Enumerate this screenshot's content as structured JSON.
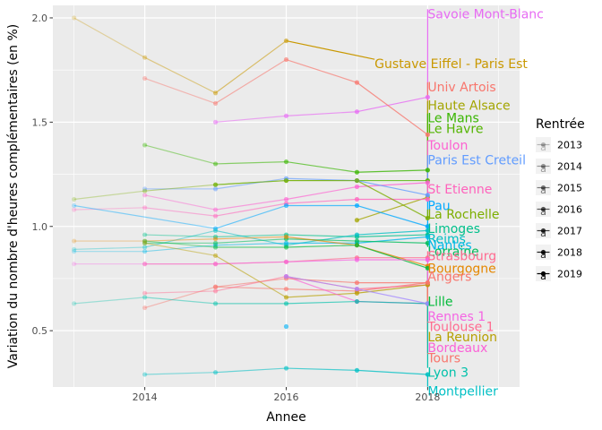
{
  "chart_data": {
    "type": "line",
    "xlabel": "Annee",
    "ylabel": "Variation du nombre d'heures complémentaires (en %)",
    "xlim": [
      2012.7,
      2019.3
    ],
    "ylim": [
      0.23,
      2.06
    ],
    "x_ticks": [
      2014,
      2016,
      2018
    ],
    "y_ticks": [
      0.5,
      1.0,
      1.5,
      2.0
    ],
    "x_tick_labels": [
      "2014",
      "2016",
      "2018"
    ],
    "y_tick_labels": [
      "0.5",
      "1.0",
      "1.5",
      "2.0"
    ],
    "minor_x": [
      2013,
      2015,
      2017,
      2019
    ],
    "minor_y": [
      0.75,
      1.25,
      1.75
    ],
    "grid": true,
    "legend": {
      "title": "Rentrée",
      "placement": "right",
      "entries": [
        "2013",
        "2014",
        "2015",
        "2016",
        "2017",
        "2018",
        "2019"
      ],
      "symbol": "a"
    },
    "series": [
      {
        "name": "Savoie Mont-Blanc",
        "color": "#e76bf3",
        "points": [
          [
            2015,
            1.5
          ],
          [
            2016,
            1.53
          ],
          [
            2017,
            1.55
          ],
          [
            2018,
            1.62
          ]
        ],
        "label": [
          2018.0,
          2.02
        ]
      },
      {
        "name": "Gustave Eiffel - Paris Est",
        "color": "#c99800",
        "points": [
          [
            2013,
            2.0
          ],
          [
            2014,
            1.81
          ],
          [
            2015,
            1.64
          ],
          [
            2016,
            1.89
          ]
        ],
        "label": [
          2017.25,
          1.78
        ]
      },
      {
        "name": "Univ Artois",
        "color": "#f8766d",
        "points": [
          [
            2014,
            1.71
          ],
          [
            2015,
            1.59
          ],
          [
            2016,
            1.8
          ],
          [
            2017,
            1.69
          ],
          [
            2018,
            1.44
          ]
        ],
        "label": [
          2018.0,
          1.67
        ]
      },
      {
        "name": "Haute Alsace",
        "color": "#a3a500",
        "points": [
          [
            2017,
            1.03
          ],
          [
            2018,
            1.14
          ]
        ],
        "label": [
          2018.0,
          1.58
        ]
      },
      {
        "name": "Le Mans",
        "color": "#39b600",
        "points": [
          [
            2014,
            1.39
          ],
          [
            2015,
            1.3
          ],
          [
            2016,
            1.31
          ],
          [
            2017,
            1.26
          ],
          [
            2018,
            1.27
          ]
        ],
        "label": [
          2018.0,
          1.52
        ]
      },
      {
        "name": "Le Havre",
        "color": "#53b400",
        "points": [
          [
            2015,
            1.2
          ],
          [
            2016,
            1.22
          ],
          [
            2017,
            1.22
          ],
          [
            2018,
            1.22
          ]
        ],
        "label": [
          2018.0,
          1.47
        ]
      },
      {
        "name": "Toulon",
        "color": "#fd61d1",
        "points": [
          [
            2014,
            1.15
          ],
          [
            2015,
            1.08
          ],
          [
            2016,
            1.13
          ],
          [
            2017,
            1.19
          ],
          [
            2018,
            1.21
          ]
        ],
        "label": [
          2018.0,
          1.39
        ]
      },
      {
        "name": "Paris Est Creteil",
        "color": "#619cff",
        "points": [
          [
            2014,
            1.18
          ],
          [
            2015,
            1.18
          ],
          [
            2016,
            1.23
          ],
          [
            2017,
            1.22
          ],
          [
            2018,
            1.15
          ]
        ],
        "label": [
          2018.0,
          1.32
        ]
      },
      {
        "name": "St Etienne",
        "color": "#ff62bc",
        "points": [
          [
            2013,
            1.08
          ],
          [
            2014,
            1.09
          ],
          [
            2015,
            1.05
          ],
          [
            2016,
            1.11
          ],
          [
            2017,
            1.13
          ],
          [
            2018,
            1.13
          ]
        ],
        "label": [
          2018.0,
          1.18
        ]
      },
      {
        "name": "Pau",
        "color": "#00a9ff",
        "points": [
          [
            2013,
            1.1
          ],
          [
            2015,
            0.99
          ],
          [
            2016,
            1.1
          ],
          [
            2017,
            1.1
          ],
          [
            2018,
            1.0
          ]
        ],
        "label": [
          2018.0,
          1.1
        ]
      },
      {
        "name": "La Rochelle",
        "color": "#7cae00",
        "points": [
          [
            2013,
            1.13
          ],
          [
            2014,
            1.17
          ],
          [
            2015,
            1.2
          ],
          [
            2016,
            1.22
          ],
          [
            2017,
            1.22
          ],
          [
            2018,
            1.04
          ]
        ],
        "label": [
          2018.0,
          1.06
        ]
      },
      {
        "name": "Limoges",
        "color": "#00c08b",
        "points": [
          [
            2014,
            0.96
          ],
          [
            2015,
            0.95
          ],
          [
            2016,
            0.96
          ],
          [
            2017,
            0.95
          ],
          [
            2018,
            0.96
          ]
        ],
        "label": [
          2018.0,
          0.99
        ]
      },
      {
        "name": "Reims",
        "color": "#00bfc4",
        "points": [
          [
            2013,
            0.89
          ],
          [
            2014,
            0.9
          ],
          [
            2015,
            0.98
          ],
          [
            2016,
            0.91
          ],
          [
            2017,
            0.96
          ],
          [
            2018,
            0.98
          ]
        ],
        "label": [
          2018.0,
          0.94
        ]
      },
      {
        "name": "Nantes",
        "color": "#00b8e7",
        "points": [
          [
            2013,
            0.88
          ],
          [
            2014,
            0.88
          ],
          [
            2015,
            0.91
          ],
          [
            2016,
            0.92
          ],
          [
            2017,
            0.92
          ],
          [
            2018,
            0.95
          ]
        ],
        "label": [
          2018.0,
          0.91
        ]
      },
      {
        "name": "Lorraine",
        "color": "#00bd5c",
        "points": [
          [
            2014,
            0.92
          ],
          [
            2015,
            0.92
          ],
          [
            2016,
            0.94
          ],
          [
            2017,
            0.93
          ],
          [
            2018,
            0.92
          ]
        ],
        "label": [
          2018.0,
          0.88
        ]
      },
      {
        "name": "Strasbourg",
        "color": "#ff6c91",
        "points": [
          [
            2014,
            0.82
          ],
          [
            2015,
            0.82
          ],
          [
            2016,
            0.83
          ],
          [
            2017,
            0.85
          ],
          [
            2018,
            0.85
          ]
        ],
        "label": [
          2018.0,
          0.86
        ]
      },
      {
        "name": "Bourgogne",
        "color": "#e58700",
        "points": [
          [
            2013,
            0.93
          ],
          [
            2014,
            0.93
          ],
          [
            2015,
            0.94
          ],
          [
            2016,
            0.95
          ],
          [
            2017,
            0.91
          ],
          [
            2018,
            0.81
          ]
        ],
        "label": [
          2018.0,
          0.8
        ]
      },
      {
        "name": "Angers",
        "color": "#f8766d",
        "points": [
          [
            2014,
            0.61
          ],
          [
            2015,
            0.71
          ],
          [
            2016,
            0.7
          ],
          [
            2017,
            0.69
          ],
          [
            2018,
            0.73
          ]
        ],
        "label": [
          2018.0,
          0.76
        ]
      },
      {
        "name": "Lille",
        "color": "#00ba38",
        "points": [
          [
            2014,
            0.93
          ],
          [
            2015,
            0.9
          ],
          [
            2016,
            0.9
          ],
          [
            2017,
            0.91
          ],
          [
            2018,
            0.8
          ]
        ],
        "label": [
          2018.0,
          0.64
        ]
      },
      {
        "name": "Rennes 1",
        "color": "#f564e3",
        "points": [
          [
            2013,
            0.82
          ],
          [
            2014,
            0.82
          ],
          [
            2015,
            0.82
          ],
          [
            2016,
            0.83
          ],
          [
            2017,
            0.84
          ],
          [
            2018,
            0.84
          ]
        ],
        "label": [
          2018.0,
          0.57
        ]
      },
      {
        "name": "Toulouse 1",
        "color": "#ff6c91",
        "points": [
          [
            2014,
            0.68
          ],
          [
            2015,
            0.69
          ],
          [
            2016,
            0.76
          ],
          [
            2017,
            0.7
          ],
          [
            2018,
            0.72
          ]
        ],
        "label": [
          2018.0,
          0.52
        ]
      },
      {
        "name": "La Reunion",
        "color": "#b79f00",
        "points": [
          [
            2014,
            0.92
          ],
          [
            2015,
            0.86
          ],
          [
            2016,
            0.66
          ],
          [
            2017,
            0.68
          ],
          [
            2018,
            0.72
          ]
        ],
        "label": [
          2018.0,
          0.47
        ]
      },
      {
        "name": "Bordeaux",
        "color": "#fb61d7",
        "points": [
          [
            2016,
            0.76
          ],
          [
            2017,
            0.64
          ],
          [
            2018,
            0.63
          ]
        ],
        "label": [
          2018.0,
          0.42
        ]
      },
      {
        "name": "Tours",
        "color": "#f8766d",
        "points": [
          [
            2015,
            0.71
          ],
          [
            2016,
            0.75
          ],
          [
            2017,
            0.73
          ],
          [
            2018,
            0.73
          ]
        ],
        "label": [
          2018.0,
          0.37
        ]
      },
      {
        "name": "Lyon 3",
        "color": "#00c1aa",
        "points": [
          [
            2013,
            0.63
          ],
          [
            2014,
            0.66
          ],
          [
            2015,
            0.63
          ],
          [
            2016,
            0.63
          ],
          [
            2017,
            0.64
          ],
          [
            2018,
            0.63
          ]
        ],
        "label": [
          2018.0,
          0.3
        ]
      },
      {
        "name": "Montpellier",
        "color": "#00bfc4",
        "points": [
          [
            2014,
            0.29
          ],
          [
            2015,
            0.3
          ],
          [
            2016,
            0.32
          ],
          [
            2017,
            0.31
          ],
          [
            2018,
            0.29
          ]
        ],
        "label": [
          2018.0,
          0.21
        ]
      },
      {
        "name": "",
        "color": "#a58aff",
        "points": [
          [
            2016,
            0.76
          ],
          [
            2017,
            0.7
          ],
          [
            2018,
            0.63
          ]
        ],
        "label": null
      },
      {
        "name": "",
        "color": "#00b0f6",
        "points": [
          [
            2016,
            0.52
          ]
        ],
        "label": null
      }
    ]
  }
}
